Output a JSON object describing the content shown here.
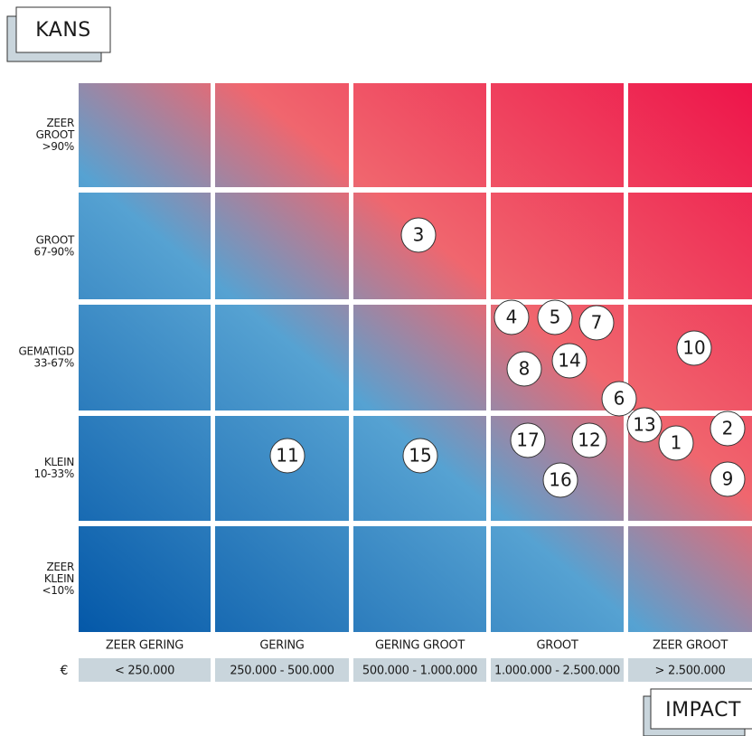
{
  "axis_y_title": "KANS",
  "axis_x_title": "IMPACT",
  "currency": "€",
  "rows": [
    {
      "lines": [
        "ZEER",
        "GROOT",
        ">90%"
      ]
    },
    {
      "lines": [
        "GROOT",
        "67-90%"
      ]
    },
    {
      "lines": [
        "GEMATIGD",
        "33-67%"
      ]
    },
    {
      "lines": [
        "KLEIN",
        "10-33%"
      ]
    },
    {
      "lines": [
        "ZEER",
        "KLEIN",
        "<10%"
      ]
    }
  ],
  "columns": [
    {
      "label": "ZEER GERING",
      "range": "< 250.000"
    },
    {
      "label": "GERING",
      "range": "250.000 - 500.000"
    },
    {
      "label": "GERING GROOT",
      "range": "500.000 - 1.000.000"
    },
    {
      "label": "GROOT",
      "range": "1.000.000 - 2.500.000"
    },
    {
      "label": "ZEER GROOT",
      "range": "> 2.500.000"
    }
  ],
  "risks": [
    "3",
    "4",
    "5",
    "7",
    "10",
    "8",
    "14",
    "6",
    "13",
    "2",
    "1",
    "17",
    "12",
    "11",
    "15",
    "16",
    "9"
  ]
}
